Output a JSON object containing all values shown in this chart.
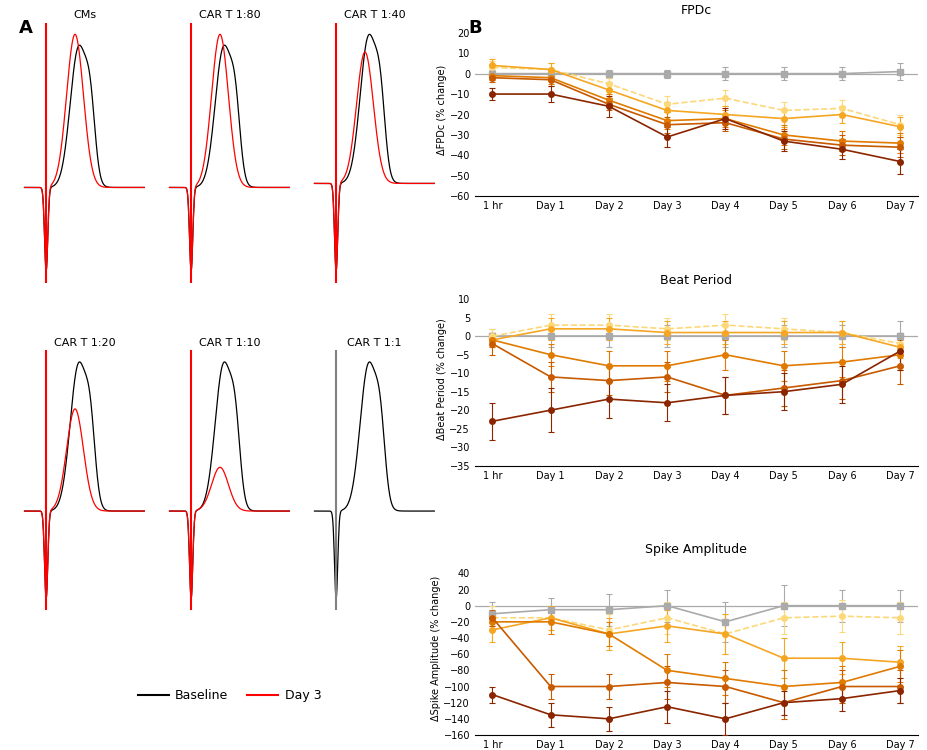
{
  "panel_A_titles": [
    "CMs",
    "CAR T 1:80",
    "CAR T 1:40",
    "CAR T 1:20",
    "CAR T 1:10",
    "CAR T 1:1"
  ],
  "x_labels": [
    "1 hr",
    "Day 1",
    "Day 2",
    "Day 3",
    "Day 4",
    "Day 5",
    "Day 6",
    "Day 7"
  ],
  "fpdc": {
    "title": "FPDc",
    "ylabel": "ΔFPDc (% change)",
    "ylim": [
      -60,
      25
    ],
    "yticks": [
      -60,
      -50,
      -40,
      -30,
      -20,
      -10,
      0,
      10,
      20
    ],
    "series": {
      "CMs": {
        "y": [
          0,
          0,
          0,
          0,
          0,
          0,
          0,
          1
        ],
        "ye": [
          2,
          2,
          2,
          2,
          3,
          3,
          3,
          4
        ]
      },
      "CAR T 1:80": {
        "y": [
          3,
          2,
          -5,
          -15,
          -12,
          -18,
          -17,
          -25
        ],
        "ye": [
          3,
          3,
          3,
          4,
          4,
          4,
          4,
          5
        ]
      },
      "CAR T 1:40": {
        "y": [
          4,
          2,
          -8,
          -18,
          -20,
          -22,
          -20,
          -26
        ],
        "ye": [
          3,
          3,
          4,
          4,
          4,
          4,
          4,
          5
        ]
      },
      "CAR T 1:20": {
        "y": [
          -1,
          -2,
          -13,
          -23,
          -22,
          -30,
          -33,
          -34
        ],
        "ye": [
          2,
          3,
          3,
          4,
          4,
          5,
          5,
          5
        ]
      },
      "CAR T 1:10": {
        "y": [
          -2,
          -3,
          -15,
          -25,
          -24,
          -32,
          -35,
          -36
        ],
        "ye": [
          2,
          3,
          3,
          4,
          4,
          5,
          5,
          5
        ]
      },
      "CAR T 1:1": {
        "y": [
          -10,
          -10,
          -16,
          -31,
          -22,
          -33,
          -37,
          -43
        ],
        "ye": [
          3,
          4,
          5,
          5,
          5,
          5,
          5,
          6
        ]
      }
    }
  },
  "beat": {
    "title": "Beat Period",
    "ylabel": "ΔBeat Period (% change)",
    "ylim": [
      -35,
      12
    ],
    "yticks": [
      -35,
      -30,
      -25,
      -20,
      -15,
      -10,
      -5,
      0,
      5,
      10
    ],
    "series": {
      "CMs": {
        "y": [
          0,
          0,
          0,
          0,
          0,
          0,
          0,
          0
        ],
        "ye": [
          2,
          3,
          3,
          3,
          3,
          3,
          3,
          4
        ]
      },
      "CAR T 1:80": {
        "y": [
          0,
          3,
          3,
          2,
          3,
          2,
          1,
          -2
        ],
        "ye": [
          2,
          3,
          3,
          3,
          3,
          3,
          3,
          3
        ]
      },
      "CAR T 1:40": {
        "y": [
          -1,
          2,
          2,
          1,
          1,
          1,
          1,
          -3
        ],
        "ye": [
          2,
          3,
          3,
          3,
          3,
          3,
          3,
          3
        ]
      },
      "CAR T 1:20": {
        "y": [
          -1,
          -5,
          -8,
          -8,
          -5,
          -8,
          -7,
          -5
        ],
        "ye": [
          2,
          3,
          4,
          4,
          4,
          4,
          4,
          4
        ]
      },
      "CAR T 1:10": {
        "y": [
          -2,
          -11,
          -12,
          -11,
          -16,
          -14,
          -12,
          -8
        ],
        "ye": [
          3,
          4,
          4,
          4,
          5,
          5,
          5,
          5
        ]
      },
      "CAR T 1:1": {
        "y": [
          -23,
          -20,
          -17,
          -18,
          -16,
          -15,
          -13,
          -4
        ],
        "ye": [
          5,
          6,
          5,
          5,
          5,
          5,
          5,
          5
        ]
      }
    }
  },
  "spike": {
    "title": "Spike Amplitude",
    "ylabel": "ΔSpike Amplitude (% change)",
    "ylim": [
      -160,
      55
    ],
    "yticks": [
      -160,
      -140,
      -120,
      -100,
      -80,
      -60,
      -40,
      -20,
      0,
      20,
      40
    ],
    "series": {
      "CMs": {
        "y": [
          -10,
          -5,
          -5,
          0,
          -20,
          0,
          0,
          0
        ],
        "ye": [
          15,
          15,
          20,
          20,
          25,
          25,
          20,
          20
        ]
      },
      "CAR T 1:80": {
        "y": [
          -15,
          -15,
          -30,
          -15,
          -35,
          -15,
          -13,
          -15
        ],
        "ye": [
          15,
          15,
          20,
          20,
          25,
          20,
          20,
          20
        ]
      },
      "CAR T 1:40": {
        "y": [
          -30,
          -15,
          -35,
          -25,
          -35,
          -65,
          -65,
          -70
        ],
        "ye": [
          15,
          15,
          20,
          20,
          25,
          25,
          20,
          20
        ]
      },
      "CAR T 1:20": {
        "y": [
          -20,
          -20,
          -35,
          -80,
          -90,
          -100,
          -95,
          -75
        ],
        "ye": [
          10,
          15,
          15,
          20,
          20,
          20,
          20,
          20
        ]
      },
      "CAR T 1:10": {
        "y": [
          -15,
          -100,
          -100,
          -95,
          -100,
          -120,
          -100,
          -100
        ],
        "ye": [
          10,
          15,
          15,
          20,
          20,
          20,
          20,
          20
        ]
      },
      "CAR T 1:1": {
        "y": [
          -110,
          -135,
          -140,
          -125,
          -140,
          -120,
          -115,
          -105
        ],
        "ye": [
          10,
          15,
          15,
          20,
          20,
          15,
          15,
          15
        ]
      }
    }
  },
  "colors": {
    "CMs": "#aaaaaa",
    "CAR T 1:80": "#fdd878",
    "CAR T 1:40": "#f5a623",
    "CAR T 1:20": "#e07b00",
    "CAR T 1:10": "#c85a00",
    "CAR T 1:1": "#8b2500"
  },
  "linestyles": {
    "CMs": "-",
    "CAR T 1:80": "--",
    "CAR T 1:40": "-",
    "CAR T 1:20": "-",
    "CAR T 1:10": "-",
    "CAR T 1:1": "-"
  },
  "markers": {
    "CMs": "s",
    "CAR T 1:80": "o",
    "CAR T 1:40": "o",
    "CAR T 1:20": "o",
    "CAR T 1:10": "o",
    "CAR T 1:1": "o"
  },
  "spike_colors": [
    "red",
    "red",
    "red",
    "red",
    "red",
    "gray"
  ],
  "ratio_map": [
    "CMs",
    "1:80",
    "1:40",
    "1:20",
    "1:10",
    "1:1"
  ],
  "waveform_amps": [
    0.55,
    0.55,
    0.45,
    0.35,
    0.15,
    0.0
  ]
}
